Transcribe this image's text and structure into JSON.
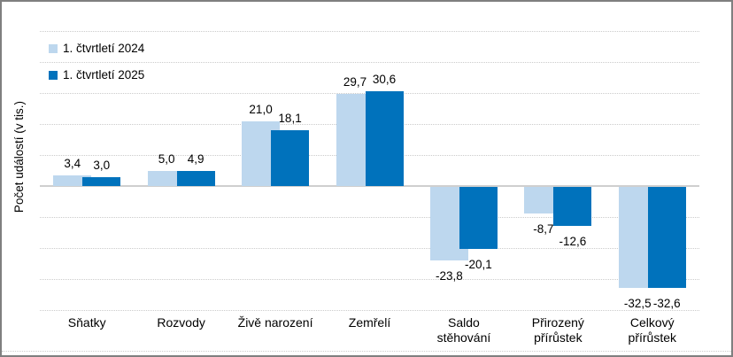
{
  "window": {
    "background": "#FFFFFF",
    "border_color": "#7F7F7F"
  },
  "chart_data": {
    "type": "bar",
    "title": "",
    "ylabel": "Počet událostí (v tis.)",
    "categories": [
      "Sňatky",
      "Rozvody",
      "Živě narození",
      "Zemřelí",
      "Saldo\nstěhování",
      "Přirozený\npřírůstek",
      "Celkový\npřírůstek"
    ],
    "series": [
      {
        "name": "1. čtvrtletí 2024",
        "color": "#BDD7EE",
        "values": [
          3.4,
          5.0,
          21.0,
          29.7,
          -23.8,
          -8.7,
          -32.5
        ],
        "labels": [
          "3,4",
          "5,0",
          "21,0",
          "29,7",
          "-23,8",
          "-8,7",
          "-32,5"
        ]
      },
      {
        "name": "1. čtvrtletí 2025",
        "color": "#0072BC",
        "values": [
          3.0,
          4.9,
          18.1,
          30.6,
          -20.1,
          -12.6,
          -32.6
        ],
        "labels": [
          "3,0",
          "4,9",
          "18,1",
          "30,6",
          "-20,1",
          "-12,6",
          "-32,6"
        ]
      }
    ],
    "ylim": [
      -40,
      50
    ],
    "grid_step": 10,
    "grid": true,
    "gridline_color": "#CBCBCB",
    "legend_position": "top-left"
  }
}
